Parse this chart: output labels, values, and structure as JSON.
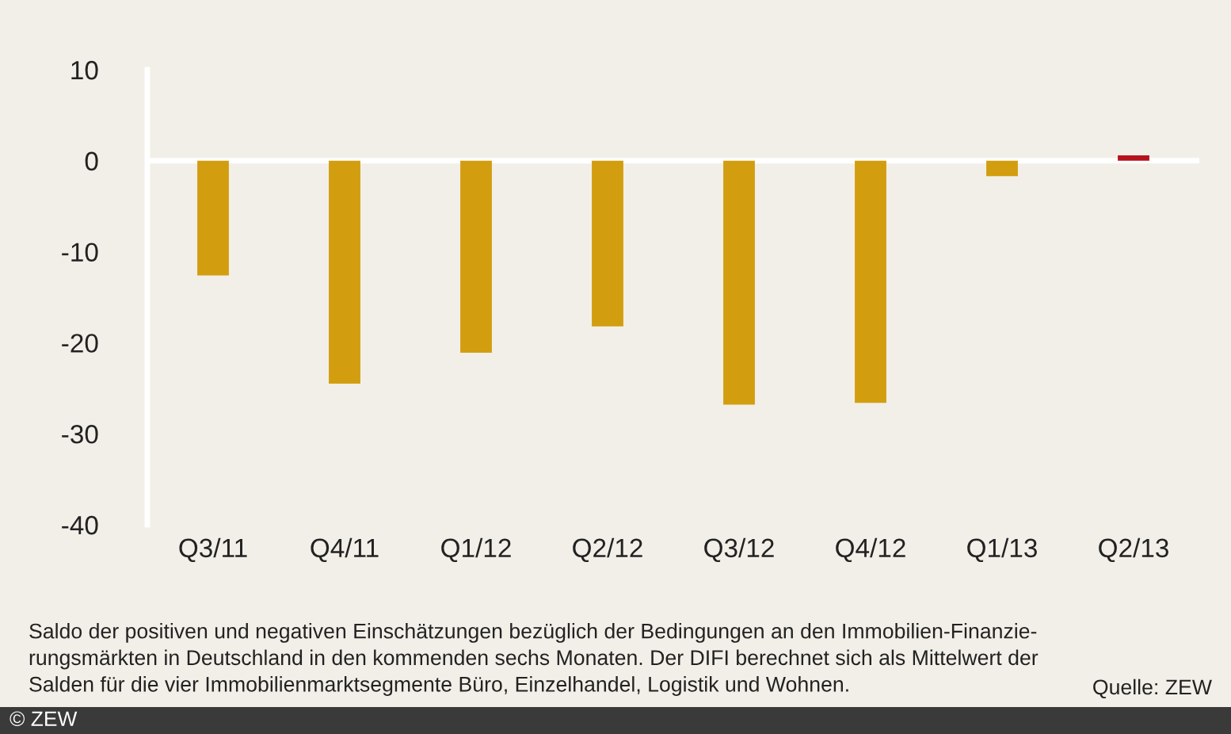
{
  "chart_data": {
    "type": "bar",
    "categories": [
      "Q3/11",
      "Q4/11",
      "Q1/12",
      "Q2/12",
      "Q3/12",
      "Q4/12",
      "Q1/13",
      "Q2/13"
    ],
    "values": [
      -12.6,
      -24.5,
      -21.1,
      -18.2,
      -26.8,
      -26.6,
      -1.7,
      0.6
    ],
    "colors": [
      "#d29e10",
      "#d29e10",
      "#d29e10",
      "#d29e10",
      "#d29e10",
      "#d29e10",
      "#d29e10",
      "#b5121b"
    ],
    "ref_lines": [
      {
        "axis": "y",
        "value": 0,
        "color": "#ffffff"
      }
    ],
    "ylim": [
      -40,
      10
    ],
    "yticks": [
      -40,
      -30,
      -20,
      -10,
      0,
      10
    ],
    "grid": false,
    "legend": false,
    "annotations": [
      "Saldo der positiven und negativen Einschätzungen bezüglich der Bedingungen an den Immobilien-Finanzie-\nrungsmärkten in Deutschland in den kommenden sechs Monaten. Der DIFI berechnet sich als Mittelwert der\nSalden für die vier Immobilienmarktsegmente Büro, Einzelhandel, Logistik und Wohnen.",
      "Quelle: ZEW",
      "© ZEW"
    ]
  }
}
